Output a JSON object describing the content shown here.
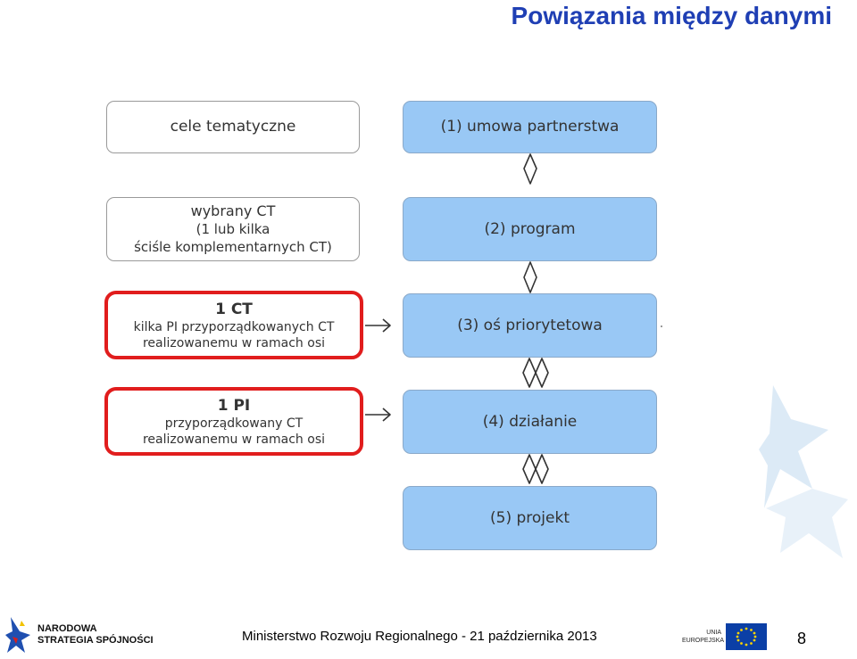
{
  "title": "Powiązania między danymi",
  "left_boxes": [
    {
      "lines": [
        "cele tematyczne"
      ]
    },
    {
      "lines": [
        "wybrany CT",
        "(1 lub kilka",
        "ściśle komplementarnych CT)"
      ]
    },
    {
      "heading": "1 CT",
      "lines": [
        "kilka PI przyporządkowanych CT",
        "realizowanemu w ramach osi"
      ]
    },
    {
      "heading": "1 PI",
      "lines": [
        "przyporządkowany CT",
        "realizowanemu w ramach osi"
      ]
    }
  ],
  "right_boxes": [
    {
      "label": "(1) umowa partnerstwa"
    },
    {
      "label": "(2) program"
    },
    {
      "label": "(3) oś priorytetowa"
    },
    {
      "label": "(4) działanie"
    },
    {
      "label": "(5) projekt"
    }
  ],
  "footer": {
    "logo_left": [
      "NARODOWA",
      "STRATEGIA SPÓJNOŚCI"
    ],
    "center_text": "Ministerstwo Rozwoju Regionalnego - 21 października 2013",
    "eu_label": [
      "UNIA",
      "EUROPEJSKA"
    ],
    "page_number": "8"
  },
  "colors": {
    "title": "#1f3fb4",
    "box_blue": "#99c8f5",
    "box_red_border": "#e11d1d",
    "eu_flag": "#0b3fa6",
    "eu_star": "#ffd400"
  }
}
